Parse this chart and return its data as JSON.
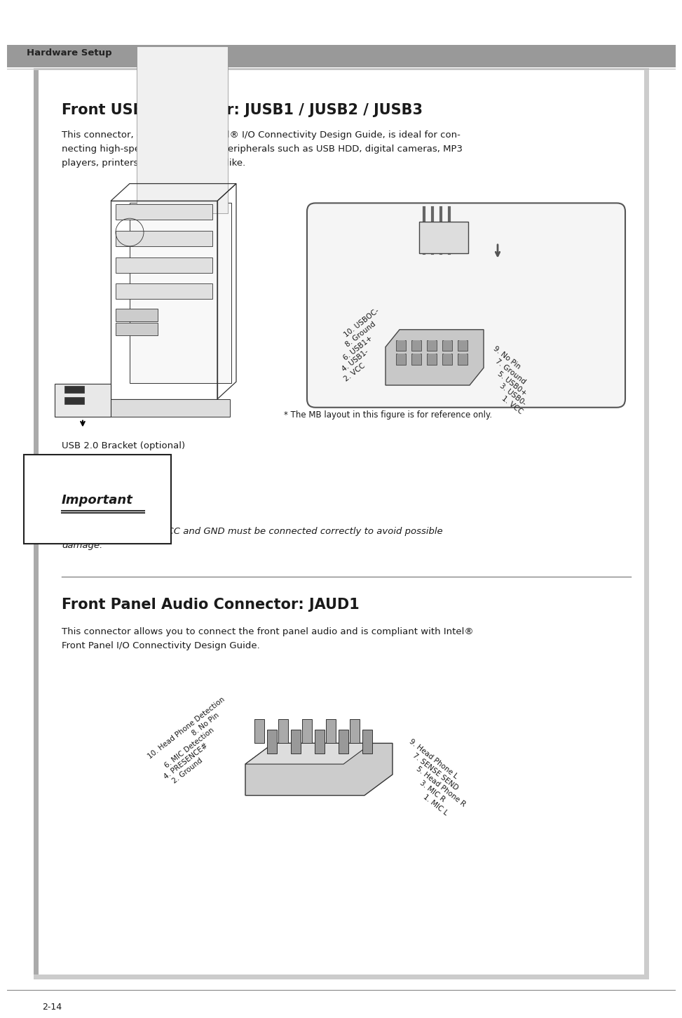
{
  "page_bg": "#ffffff",
  "header_bar_color": "#999999",
  "header_text": "Hardware Setup",
  "section1_title": "Front USB Connector: JUSB1 / JUSB2 / JUSB3",
  "section1_body_line1": "This connector, compliant with Intel® I/O Connectivity Design Guide, is ideal for con-",
  "section1_body_line2": "necting high-speed USB interface peripherals such as USB HDD, digital cameras, MP3",
  "section1_body_line3": "players, printers, modems and the like.",
  "mb_note": "* The MB layout in this figure is for reference only.",
  "usb_bracket_label": "USB 2.0 Bracket (optional)",
  "important_label": "Important",
  "important_note_line1": "Note that the pins of VCC and GND must be connected correctly to avoid possible",
  "important_note_line2": "damage.",
  "section2_title": "Front Panel Audio Connector: JAUD1",
  "section2_body_line1": "This connector allows you to connect the front panel audio and is compliant with Intel®",
  "section2_body_line2": "Front Panel I/O Connectivity Design Guide.",
  "page_number": "2-14",
  "usb_left_pins": [
    "10. USBOC-",
    "8. Ground",
    "6. USB1+",
    "4. USB1-",
    "2. VCC"
  ],
  "usb_right_pins": [
    "9. No Pin",
    "7. Ground",
    "5. USB0+",
    "3. USB0-",
    "1. VCC"
  ],
  "audio_left_pins": [
    "10. Head Phone Detection",
    "8. No Pin",
    "6. MIC Detection",
    "4. PRESENCE#",
    "2. Ground"
  ],
  "audio_right_pins": [
    "9. Head Phone L",
    "7. SENSE SEND",
    "5. Head Phone R",
    "3. MIC R",
    "1. MIC L"
  ],
  "text_color": "#1a1a1a",
  "light_gray": "#dddddd",
  "mid_gray": "#888888",
  "dark_gray": "#444444"
}
